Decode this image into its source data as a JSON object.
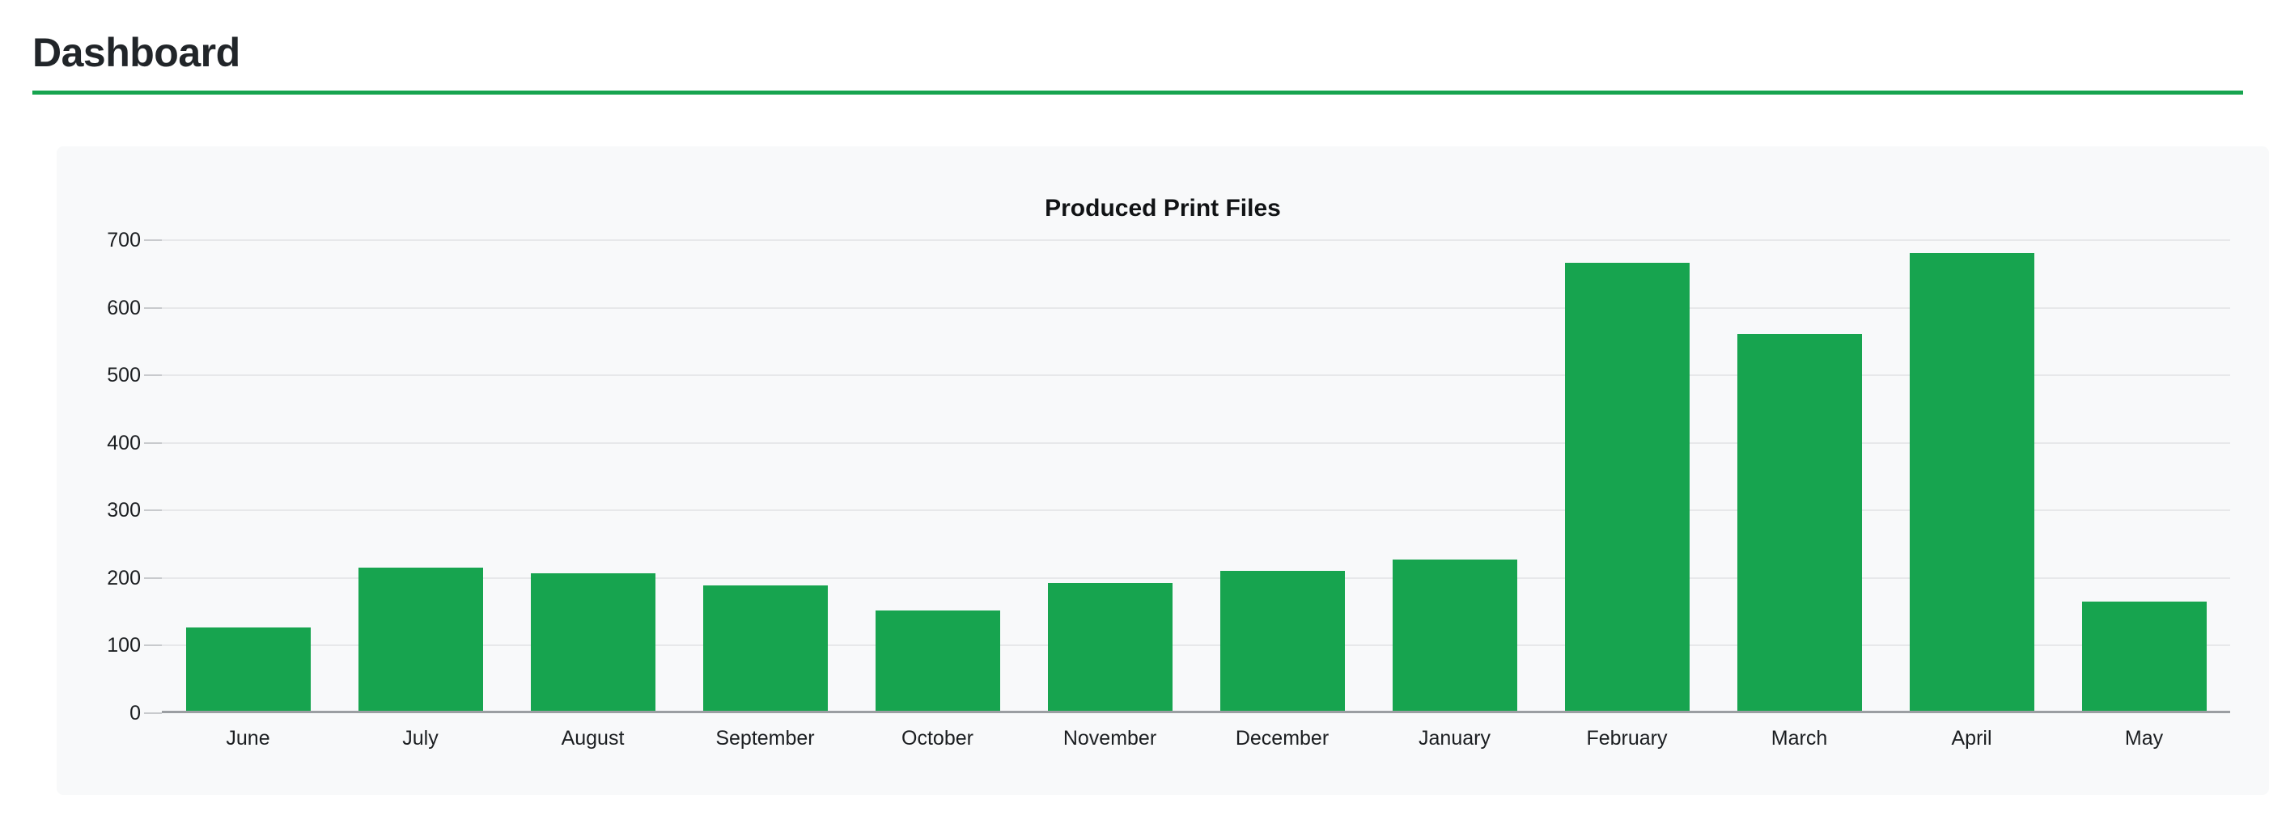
{
  "page": {
    "title": "Dashboard"
  },
  "colors": {
    "accent_green": "#17a44f",
    "card_background": "#f8f9fa",
    "grid_line": "#e7e8ea",
    "axis_line": "#9b9ea2",
    "tick": "#c8cacd",
    "heading_text": "#212529",
    "label_text": "#1b1e21"
  },
  "chart_data": {
    "type": "bar",
    "title": "Produced Print Files",
    "categories": [
      "June",
      "July",
      "August",
      "September",
      "October",
      "November",
      "December",
      "January",
      "February",
      "March",
      "April",
      "May"
    ],
    "series": [
      {
        "name": "Produced Print Files",
        "color": "#17a44f",
        "values": [
          127,
          215,
          207,
          189,
          152,
          193,
          211,
          227,
          667,
          561,
          681,
          165
        ]
      }
    ],
    "xlabel": "",
    "ylabel": "",
    "ylim": [
      0,
      700
    ],
    "yticks": [
      0,
      100,
      200,
      300,
      400,
      500,
      600,
      700
    ],
    "grid": true,
    "legend_position": "none"
  }
}
